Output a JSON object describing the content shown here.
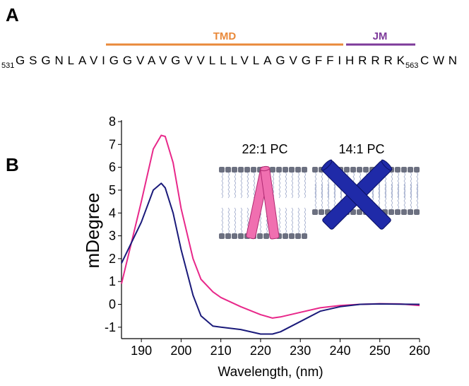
{
  "panel_a": {
    "label": "A",
    "tmd": "TMD",
    "jm": "JM",
    "sequence": {
      "start": "531",
      "residues": "GSGNLAVIGGVAVGVVLLLVLAGVGFFIHRRRK",
      "end": "563",
      "tail": "CWN"
    }
  },
  "panel_b": {
    "label": "B",
    "inset_left": "22:1 PC",
    "inset_right": "14:1 PC"
  },
  "chart_data": {
    "type": "line",
    "xlabel": "Wavelength, (nm)",
    "ylabel": "mDegree",
    "x": [
      185,
      190,
      193,
      195,
      196,
      198,
      200,
      203,
      205,
      208,
      210,
      215,
      220,
      223,
      225,
      230,
      235,
      240,
      245,
      250,
      255,
      260
    ],
    "series": [
      {
        "name": "22:1 PC",
        "color": "#e8288a",
        "values": [
          0.9,
          4.5,
          6.8,
          7.4,
          7.35,
          6.2,
          4.2,
          2.0,
          1.1,
          0.55,
          0.3,
          -0.1,
          -0.45,
          -0.6,
          -0.55,
          -0.35,
          -0.15,
          -0.05,
          0.0,
          0.03,
          0.02,
          -0.05
        ]
      },
      {
        "name": "14:1 PC",
        "color": "#1a1a7a",
        "values": [
          1.8,
          3.6,
          5.0,
          5.3,
          5.1,
          4.0,
          2.4,
          0.4,
          -0.5,
          -0.95,
          -1.0,
          -1.1,
          -1.3,
          -1.3,
          -1.2,
          -0.75,
          -0.3,
          -0.1,
          0.0,
          0.02,
          0.01,
          0.0
        ]
      }
    ],
    "xlim": [
      185,
      260
    ],
    "xticks": [
      190,
      200,
      210,
      220,
      230,
      240,
      250,
      260
    ],
    "ylim": [
      -1.5,
      8
    ],
    "yticks": [
      -1,
      0,
      1,
      2,
      3,
      4,
      5,
      6,
      7,
      8
    ]
  }
}
